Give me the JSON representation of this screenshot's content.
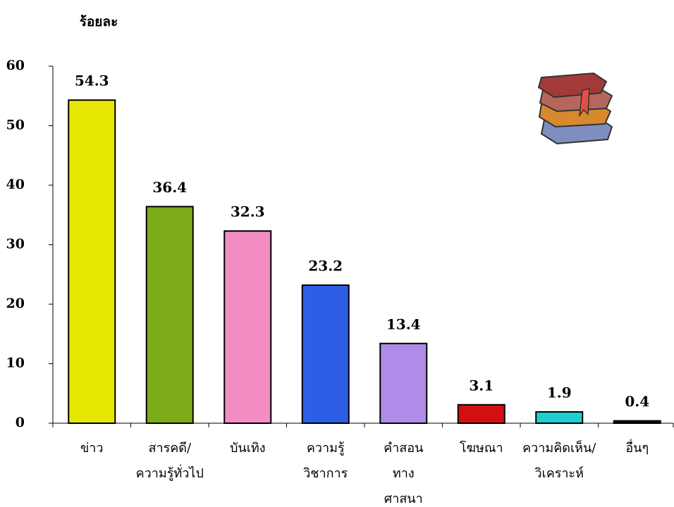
{
  "chart_data": {
    "type": "bar",
    "y_label": "ร้อยละ",
    "categories": [
      "ข่าว",
      "สารคดี/\nความรู้ทั่วไป",
      "บันเทิง",
      "ความรู้\nวิชาการ",
      "คำสอน\nทาง\nศาสนา",
      "โฆษณา",
      "ความคิดเห็น/\nวิเคราะห์",
      "อื่นๆ"
    ],
    "values": [
      54.3,
      36.4,
      32.3,
      23.2,
      13.4,
      3.1,
      1.9,
      0.4
    ],
    "colors": [
      "#e6e600",
      "#7cab18",
      "#f28cc2",
      "#2d5fe6",
      "#b08be8",
      "#d40f14",
      "#1fd0d0",
      "#111111"
    ],
    "ylim": [
      0,
      60
    ],
    "yticks": [
      0,
      10,
      20,
      30,
      40,
      50,
      60
    ],
    "grid": false
  }
}
